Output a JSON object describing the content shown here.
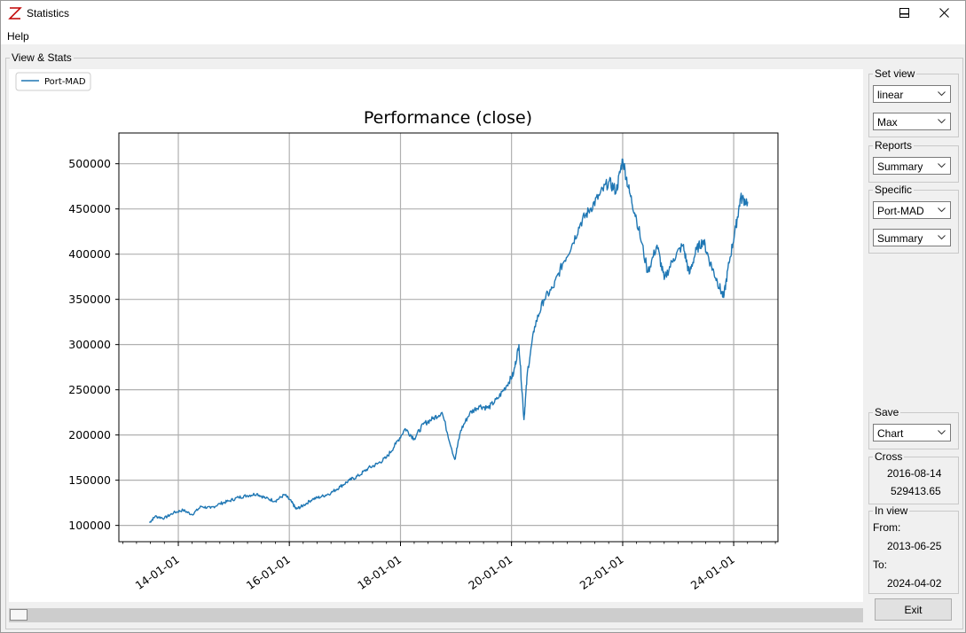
{
  "window": {
    "title": "Statistics",
    "accent": "#c00000"
  },
  "menu": {
    "help": "Help"
  },
  "main_group": {
    "label": "View & Stats"
  },
  "chart_data": {
    "type": "line",
    "title": "Performance (close)",
    "legend": {
      "entry": "Port-MAD",
      "placement": "top-left",
      "color": "#1f77b4"
    },
    "grid": true,
    "x_axis": {
      "type": "date",
      "ticks": [
        "14-01-01",
        "16-01-01",
        "18-01-01",
        "20-01-01",
        "22-01-01",
        "24-01-01"
      ],
      "tick_dates": [
        "2014-01-01",
        "2016-01-01",
        "2018-01-01",
        "2020-01-01",
        "2022-01-01",
        "2024-01-01"
      ],
      "xlim": [
        "2012-12-06",
        "2024-10-18"
      ]
    },
    "y_axis": {
      "ticks": [
        "100000",
        "150000",
        "200000",
        "250000",
        "300000",
        "350000",
        "400000",
        "450000",
        "500000"
      ],
      "ylim": [
        82000,
        534000
      ]
    },
    "series": [
      {
        "name": "Port-MAD",
        "color": "#1f77b4",
        "x": [
          "2013-06-25",
          "2013-08-01",
          "2013-10-01",
          "2013-12-01",
          "2014-02-01",
          "2014-04-01",
          "2014-06-01",
          "2014-08-01",
          "2014-10-01",
          "2014-12-01",
          "2015-02-01",
          "2015-04-01",
          "2015-06-01",
          "2015-08-01",
          "2015-10-01",
          "2015-12-01",
          "2016-01-15",
          "2016-02-15",
          "2016-04-01",
          "2016-06-01",
          "2016-08-01",
          "2016-10-01",
          "2016-12-01",
          "2017-02-01",
          "2017-04-01",
          "2017-06-01",
          "2017-08-01",
          "2017-10-01",
          "2017-12-01",
          "2018-02-01",
          "2018-04-01",
          "2018-06-01",
          "2018-08-01",
          "2018-10-01",
          "2018-12-24",
          "2019-02-01",
          "2019-04-01",
          "2019-06-01",
          "2019-08-01",
          "2019-10-01",
          "2019-12-01",
          "2020-01-15",
          "2020-02-19",
          "2020-03-23",
          "2020-04-15",
          "2020-06-01",
          "2020-08-01",
          "2020-10-01",
          "2020-12-01",
          "2021-02-01",
          "2021-04-01",
          "2021-06-01",
          "2021-08-01",
          "2021-10-01",
          "2021-11-20",
          "2022-01-01",
          "2022-02-15",
          "2022-04-01",
          "2022-06-15",
          "2022-08-15",
          "2022-10-01",
          "2022-12-01",
          "2023-02-01",
          "2023-03-15",
          "2023-05-01",
          "2023-06-15",
          "2023-08-01",
          "2023-09-15",
          "2023-10-27",
          "2023-12-01",
          "2024-01-15",
          "2024-02-15",
          "2024-04-02"
        ],
        "values": [
          103000,
          110000,
          108000,
          114000,
          117000,
          112000,
          121000,
          119000,
          124000,
          127000,
          131000,
          133000,
          135000,
          130000,
          127000,
          134000,
          126000,
          118000,
          122000,
          129000,
          132000,
          136000,
          143000,
          150000,
          155000,
          163000,
          168000,
          175000,
          190000,
          207000,
          196000,
          212000,
          218000,
          225000,
          173000,
          205000,
          224000,
          232000,
          230000,
          240000,
          255000,
          268000,
          300000,
          217000,
          270000,
          320000,
          350000,
          363000,
          389000,
          410000,
          435000,
          450000,
          465000,
          480000,
          470000,
          505000,
          468000,
          440000,
          380000,
          410000,
          372000,
          395000,
          410000,
          378000,
          405000,
          415000,
          390000,
          370000,
          352000,
          390000,
          430000,
          462000,
          458000
        ]
      }
    ]
  },
  "sidebar": {
    "set_view": {
      "label": "Set view",
      "scale": "linear",
      "range": "Max"
    },
    "reports": {
      "label": "Reports",
      "value": "Summary"
    },
    "specific": {
      "label": "Specific",
      "portfolio": "Port-MAD",
      "report": "Summary"
    },
    "save": {
      "label": "Save",
      "value": "Chart"
    },
    "cross": {
      "label": "Cross",
      "date": "2016-08-14",
      "value": "529413.65"
    },
    "in_view": {
      "label": "In view",
      "from_label": "From:",
      "from": "2013-06-25",
      "to_label": "To:",
      "to": "2024-04-02"
    }
  },
  "buttons": {
    "exit": "Exit"
  }
}
